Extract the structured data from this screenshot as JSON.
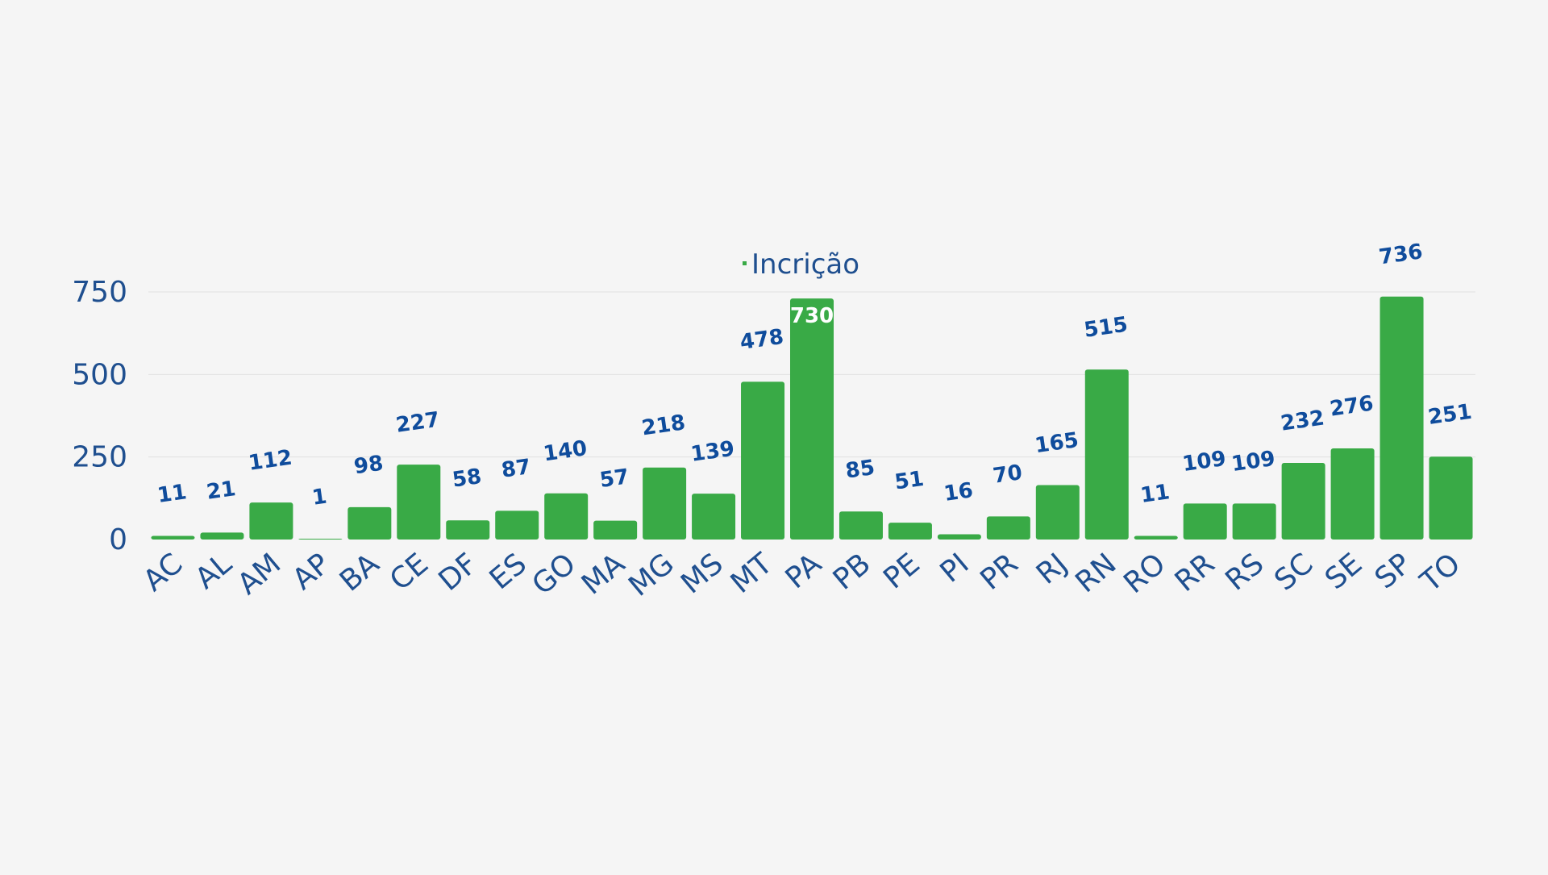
{
  "chart_data": {
    "type": "bar",
    "categories": [
      "AC",
      "AL",
      "AM",
      "AP",
      "BA",
      "CE",
      "DF",
      "ES",
      "GO",
      "MA",
      "MG",
      "MS",
      "MT",
      "PA",
      "PB",
      "PE",
      "PI",
      "PR",
      "RJ",
      "RN",
      "RO",
      "RR",
      "RS",
      "SC",
      "SE",
      "SP",
      "TO"
    ],
    "series": [
      {
        "name": "Incrição",
        "values": [
          11,
          21,
          112,
          1,
          98,
          227,
          58,
          87,
          140,
          57,
          218,
          139,
          478,
          730,
          85,
          51,
          16,
          70,
          165,
          515,
          11,
          109,
          109,
          232,
          276,
          736,
          251
        ]
      }
    ],
    "yticks": [
      0,
      250,
      500,
      750
    ],
    "ylim": [
      0,
      750
    ],
    "grid": true,
    "legend_position": "top-center",
    "colors": {
      "bar": "#39aa46",
      "text": "#1f4f8f",
      "data_label": "#0f4c9c",
      "data_label_inside": "#ffffff",
      "grid": "#e1e1e1",
      "background": "#f5f5f5"
    }
  }
}
